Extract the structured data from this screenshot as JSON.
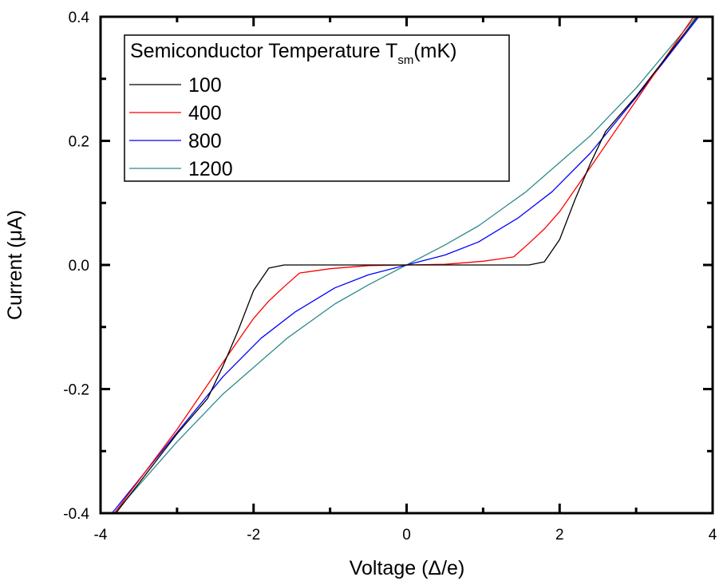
{
  "chart_data": {
    "type": "line",
    "xlabel": "Voltage (Δ/e)",
    "ylabel": "Current (μA)",
    "xlim": [
      -4,
      4
    ],
    "ylim": [
      -0.4,
      0.4
    ],
    "xticks": [
      -4,
      -2,
      0,
      2,
      4
    ],
    "xtick_labels": [
      "-4",
      "-2",
      "0",
      "2",
      "4"
    ],
    "xminor": [
      -3,
      -1,
      1,
      3
    ],
    "yticks": [
      -0.4,
      -0.2,
      0.0,
      0.2,
      0.4
    ],
    "ytick_labels": [
      "-0.4",
      "-0.2",
      "0.0",
      "0.2",
      "0.4"
    ],
    "yminor": [
      -0.3,
      -0.1,
      0.1,
      0.3
    ],
    "grid": false,
    "legend": {
      "title_main": "Semiconductor Temperature T",
      "title_sub": "sm",
      "title_unit": "(mK)",
      "placement": "top-left"
    },
    "series": [
      {
        "name": "100",
        "color": "#000000",
        "x": [
          -3.8,
          -3.0,
          -2.6,
          -2.4,
          -2.2,
          -2.0,
          -1.8,
          -1.6,
          -1.0,
          0.0,
          1.0,
          1.6,
          1.8,
          2.0,
          2.2,
          2.4,
          2.6,
          3.0,
          3.8
        ],
        "y": [
          -0.4,
          -0.272,
          -0.215,
          -0.163,
          -0.105,
          -0.041,
          -0.005,
          0.0,
          0.0,
          0.0,
          0.0,
          0.0,
          0.005,
          0.041,
          0.105,
          0.163,
          0.215,
          0.272,
          0.4
        ]
      },
      {
        "name": "400",
        "color": "#ff0000",
        "x": [
          -3.82,
          -3.0,
          -2.4,
          -2.0,
          -1.8,
          -1.6,
          -1.4,
          -1.0,
          -0.5,
          0.0,
          0.5,
          1.0,
          1.4,
          1.6,
          1.8,
          2.0,
          2.4,
          3.0,
          3.75
        ],
        "y": [
          -0.4,
          -0.265,
          -0.157,
          -0.086,
          -0.058,
          -0.035,
          -0.013,
          -0.006,
          -0.001,
          0.0,
          0.001,
          0.006,
          0.013,
          0.035,
          0.058,
          0.086,
          0.157,
          0.265,
          0.4
        ]
      },
      {
        "name": "800",
        "color": "#0000ff",
        "x": [
          -3.85,
          -3.0,
          -2.4,
          -1.9,
          -1.46,
          -0.94,
          -0.5,
          0.0,
          0.5,
          0.94,
          1.46,
          1.9,
          2.4,
          3.0,
          3.82
        ],
        "y": [
          -0.4,
          -0.27,
          -0.18,
          -0.118,
          -0.076,
          -0.037,
          -0.016,
          0.0,
          0.016,
          0.037,
          0.076,
          0.118,
          0.18,
          0.27,
          0.4
        ]
      },
      {
        "name": "1200",
        "color": "#2e8b8b",
        "x": [
          -3.82,
          -3.0,
          -2.4,
          -1.56,
          -0.94,
          -0.5,
          0.0,
          0.5,
          0.94,
          1.56,
          2.4,
          3.0,
          3.78
        ],
        "y": [
          -0.4,
          -0.285,
          -0.208,
          -0.118,
          -0.063,
          -0.032,
          0.0,
          0.032,
          0.063,
          0.118,
          0.208,
          0.285,
          0.4
        ]
      }
    ]
  }
}
